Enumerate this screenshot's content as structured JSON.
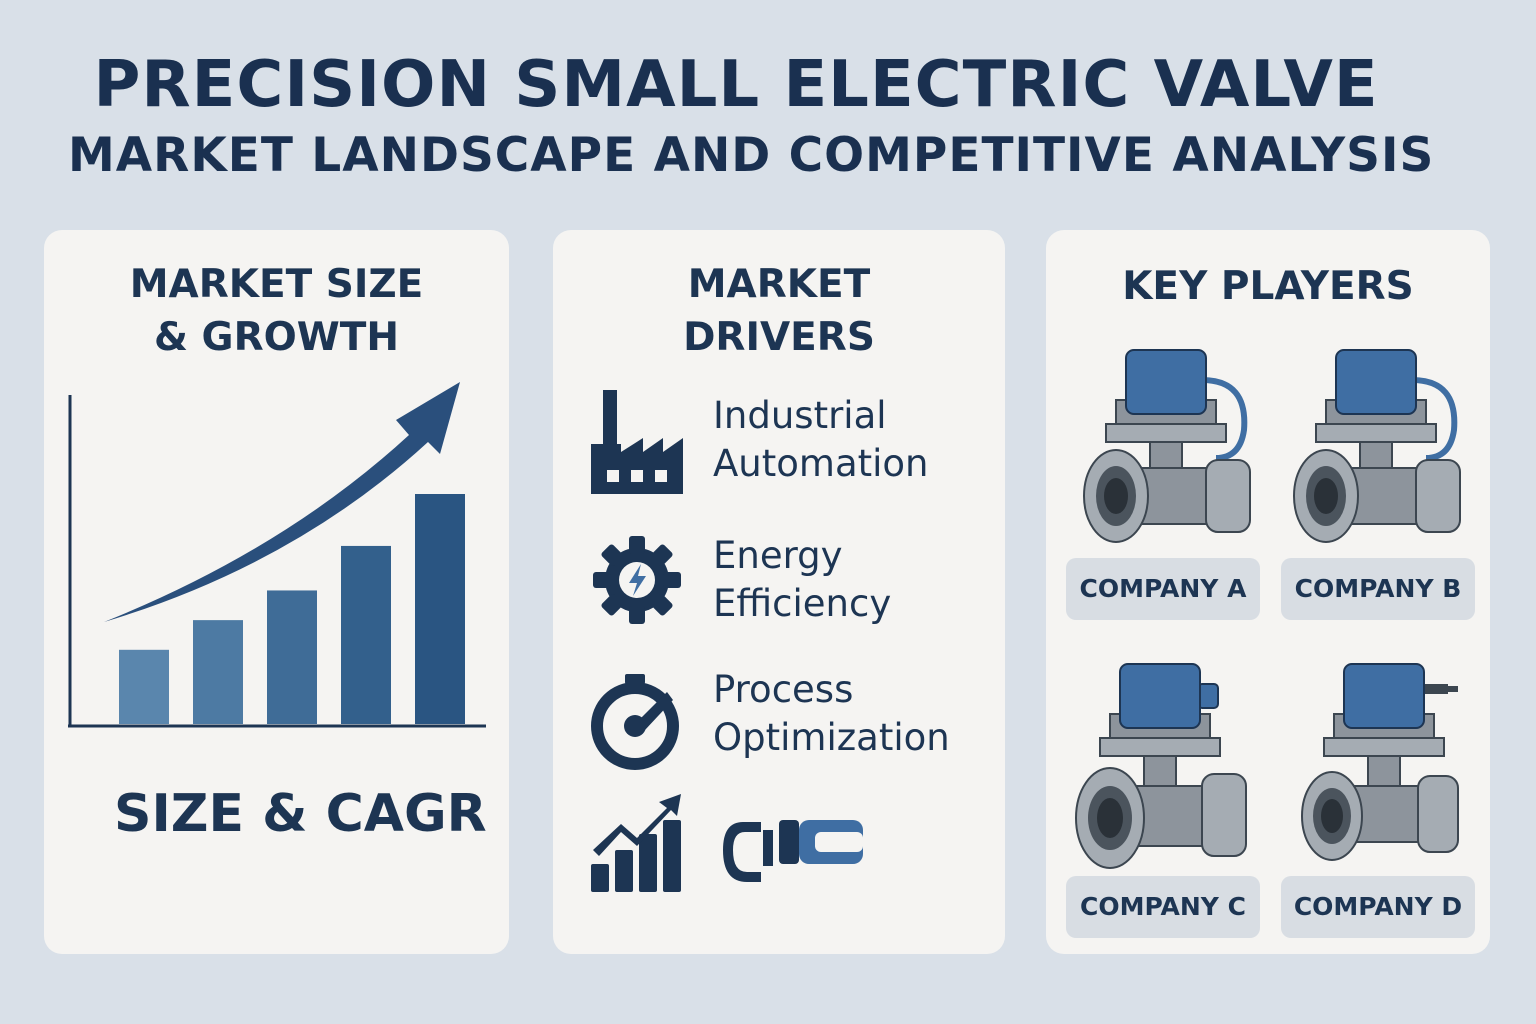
{
  "header": {
    "title": "PRECISION SMALL ELECTRIC VALVE",
    "subtitle": "MARKET LANDSCAPE AND COMPETITIVE ANALYSIS"
  },
  "market_size": {
    "title_line1": "MARKET SIZE",
    "title_line2": "& GROWTH",
    "caption": "SIZE & CAGR"
  },
  "chart_data": {
    "type": "bar",
    "title": "",
    "categories": [
      "",
      "",
      "",
      "",
      ""
    ],
    "values": [
      1,
      1.4,
      1.8,
      2.4,
      3.1
    ],
    "trend_arrow": "rising",
    "xlabel": "",
    "ylabel": "",
    "grid": false,
    "colors": [
      "#5a86ad",
      "#4d7aa3",
      "#3f6c97",
      "#33608c",
      "#2a5582"
    ],
    "arrow_color": "#2a4f7c"
  },
  "drivers": {
    "title_line1": "MARKET",
    "title_line2": "DRIVERS",
    "items": [
      {
        "icon": "factory-icon",
        "line1": "Industrial",
        "line2": "Automation"
      },
      {
        "icon": "gear-bolt-icon",
        "line1": "Energy",
        "line2": "Efficiency"
      },
      {
        "icon": "gauge-icon",
        "line1": "Process",
        "line2": "Optimization"
      },
      {
        "icon": "growth-chart-icon",
        "line1": "",
        "line2": ""
      }
    ],
    "extra_icon": "connector-icon"
  },
  "players": {
    "title": "KEY PLAYERS",
    "companies": [
      "COMPANY A",
      "COMPANY B",
      "COMPANY C",
      "COMPANY D"
    ]
  },
  "colors": {
    "background": "#d9e0e8",
    "panel": "#f5f4f2",
    "navy": "#1d3553",
    "accent_blue": "#3f6ea3",
    "valve_gray": "#8d949c"
  }
}
